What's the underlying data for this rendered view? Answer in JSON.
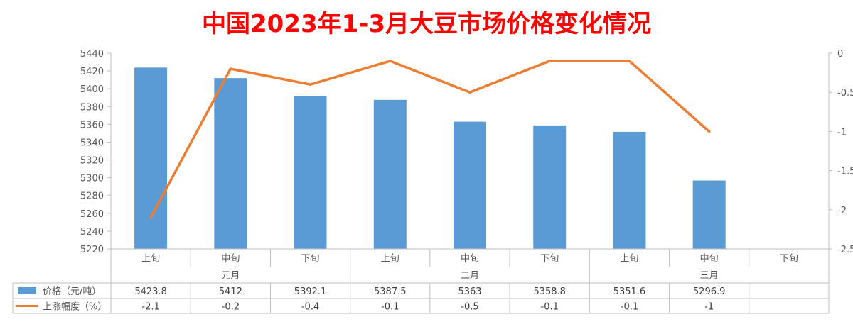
{
  "chart_data": {
    "type": "bar",
    "title": "中国2023年1-3月大豆市场价格变化情况",
    "categories": [
      "上旬",
      "中旬",
      "下旬",
      "上旬",
      "中旬",
      "下旬",
      "上旬",
      "中旬",
      "下旬"
    ],
    "groups": [
      {
        "label": "元月",
        "span": 3
      },
      {
        "label": "二月",
        "span": 3
      },
      {
        "label": "三月",
        "span": 3
      }
    ],
    "ylim": [
      5220,
      5440
    ],
    "y_ticks": [
      5220,
      5240,
      5260,
      5280,
      5300,
      5320,
      5340,
      5360,
      5380,
      5400,
      5420,
      5440
    ],
    "y2lim": [
      -2.5,
      0
    ],
    "y2_ticks": [
      "0",
      "-0.5",
      "-1",
      "-1.5",
      "-2",
      "-2.5"
    ],
    "grid": false,
    "series": [
      {
        "name": "价格（元/吨）",
        "type": "bar",
        "axis": "left",
        "color": "#5B9BD5",
        "values": [
          5423.8,
          5412,
          5392.1,
          5387.5,
          5363,
          5358.8,
          5351.6,
          5296.9,
          null
        ],
        "labels": [
          "5423.8",
          "5412",
          "5392.1",
          "5387.5",
          "5363",
          "5358.8",
          "5351.6",
          "5296.9",
          ""
        ]
      },
      {
        "name": "上涨幅度（%）",
        "type": "line",
        "axis": "right",
        "color": "#ED7D31",
        "values": [
          -2.1,
          -0.2,
          -0.4,
          -0.1,
          -0.5,
          -0.1,
          -0.1,
          -1,
          null
        ],
        "labels": [
          "-2.1",
          "-0.2",
          "-0.4",
          "-0.1",
          "-0.5",
          "-0.1",
          "-0.1",
          "-1",
          ""
        ]
      }
    ],
    "title_color": "#FF0000"
  }
}
